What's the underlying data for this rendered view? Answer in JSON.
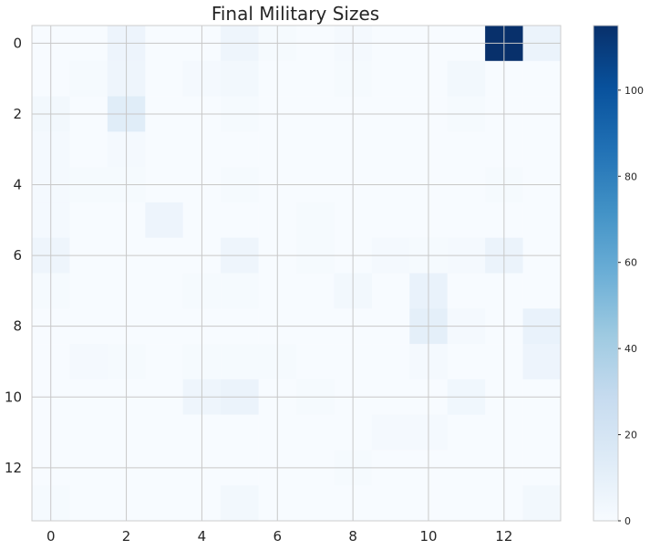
{
  "chart_data": {
    "type": "heatmap",
    "title": "Final Military Sizes",
    "xlabel": "",
    "ylabel": "",
    "x_ticks": [
      "0",
      "2",
      "4",
      "6",
      "8",
      "10",
      "12"
    ],
    "y_ticks": [
      "0",
      "2",
      "4",
      "6",
      "8",
      "10",
      "12"
    ],
    "rows": 14,
    "cols": 14,
    "colormap": "Blues",
    "vmin": 0,
    "vmax": 115,
    "grid": true,
    "colorbar": {
      "ticks": [
        "0",
        "20",
        "40",
        "60",
        "80",
        "100"
      ],
      "tick_values": [
        0,
        20,
        40,
        60,
        80,
        100
      ]
    },
    "values": [
      [
        0,
        0,
        6,
        0,
        0,
        5,
        1,
        0,
        2,
        0,
        0,
        0,
        115,
        7
      ],
      [
        0,
        1,
        5,
        0,
        2,
        3,
        0,
        0,
        1,
        0,
        0,
        3,
        0,
        0
      ],
      [
        3,
        0,
        13,
        0,
        0,
        1,
        0,
        0,
        0,
        0,
        0,
        1,
        0,
        0
      ],
      [
        2,
        0,
        2,
        0,
        0,
        0,
        0,
        0,
        0,
        0,
        0,
        0,
        0,
        0
      ],
      [
        2,
        1,
        1,
        0,
        0,
        1,
        0,
        0,
        0,
        0,
        0,
        0,
        1,
        0
      ],
      [
        2,
        0,
        0,
        6,
        0,
        0,
        0,
        1,
        0,
        0,
        0,
        0,
        0,
        0
      ],
      [
        5,
        0,
        0,
        0,
        0,
        5,
        0,
        1,
        0,
        2,
        1,
        2,
        7,
        0
      ],
      [
        1,
        0,
        0,
        0,
        1,
        1,
        0,
        0,
        3,
        0,
        8,
        0,
        0,
        0
      ],
      [
        0,
        0,
        0,
        0,
        0,
        0,
        0,
        0,
        0,
        0,
        11,
        2,
        0,
        8
      ],
      [
        0,
        2,
        1,
        0,
        1,
        1,
        1,
        0,
        0,
        0,
        2,
        0,
        0,
        6
      ],
      [
        0,
        0,
        0,
        0,
        5,
        7,
        0,
        1,
        0,
        0,
        0,
        4,
        0,
        0
      ],
      [
        0,
        0,
        0,
        0,
        0,
        0,
        0,
        0,
        0,
        2,
        2,
        0,
        0,
        0
      ],
      [
        0,
        0,
        0,
        0,
        0,
        0,
        0,
        0,
        1,
        0,
        0,
        0,
        0,
        0
      ],
      [
        1,
        0,
        0,
        0,
        0,
        3,
        0,
        0,
        0,
        0,
        0,
        0,
        0,
        3
      ]
    ]
  }
}
